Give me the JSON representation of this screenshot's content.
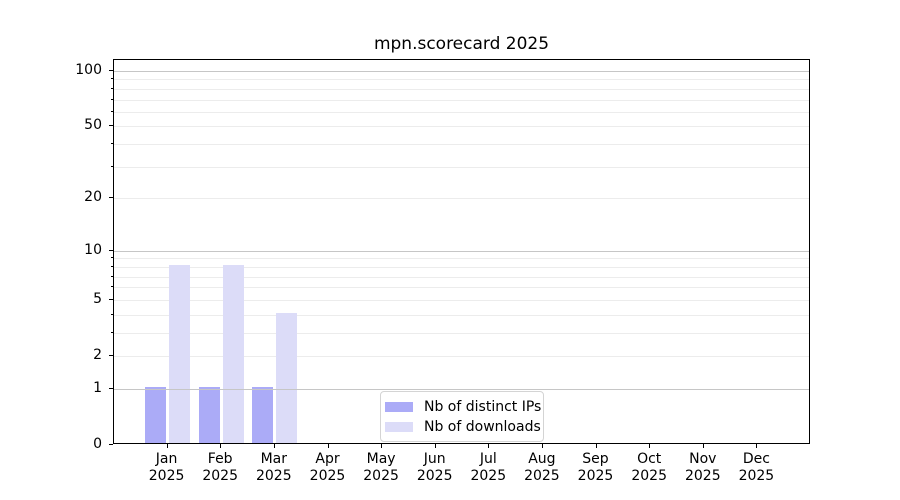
{
  "chart_data": {
    "type": "bar",
    "title": "mpn.scorecard 2025",
    "scale": "log1p",
    "ylim": [
      0,
      115
    ],
    "xlabel": "",
    "ylabel": "",
    "grid": "horizontal",
    "legend_position": "bottom-center",
    "y_ticks": [
      0,
      1,
      2,
      5,
      10,
      20,
      50,
      100
    ],
    "y_minor_ticks": [
      3,
      4,
      6,
      7,
      8,
      9,
      30,
      40,
      60,
      70,
      80,
      90
    ],
    "grid_major_values": [
      1,
      10,
      100
    ],
    "grid_minor_values": [
      2,
      3,
      4,
      5,
      6,
      7,
      8,
      9,
      20,
      30,
      40,
      50,
      60,
      70,
      80,
      90
    ],
    "categories": [
      {
        "month": "Jan",
        "year": "2025"
      },
      {
        "month": "Feb",
        "year": "2025"
      },
      {
        "month": "Mar",
        "year": "2025"
      },
      {
        "month": "Apr",
        "year": "2025"
      },
      {
        "month": "May",
        "year": "2025"
      },
      {
        "month": "Jun",
        "year": "2025"
      },
      {
        "month": "Jul",
        "year": "2025"
      },
      {
        "month": "Aug",
        "year": "2025"
      },
      {
        "month": "Sep",
        "year": "2025"
      },
      {
        "month": "Oct",
        "year": "2025"
      },
      {
        "month": "Nov",
        "year": "2025"
      },
      {
        "month": "Dec",
        "year": "2025"
      }
    ],
    "series": [
      {
        "name": "Nb of distinct IPs",
        "color": "#ababf7",
        "values": [
          1,
          1,
          1,
          0,
          0,
          0,
          0,
          0,
          0,
          0,
          0,
          0
        ]
      },
      {
        "name": "Nb of downloads",
        "color": "#dcdcf8",
        "values": [
          8,
          8,
          4,
          0,
          0,
          0,
          0,
          0,
          0,
          0,
          0,
          0
        ]
      }
    ],
    "colors": {
      "grid_major": "#c6c6c6",
      "grid_minor": "#ececec",
      "spine": "#000000",
      "legend_border": "#d4d4d4",
      "text": "#000000"
    }
  }
}
